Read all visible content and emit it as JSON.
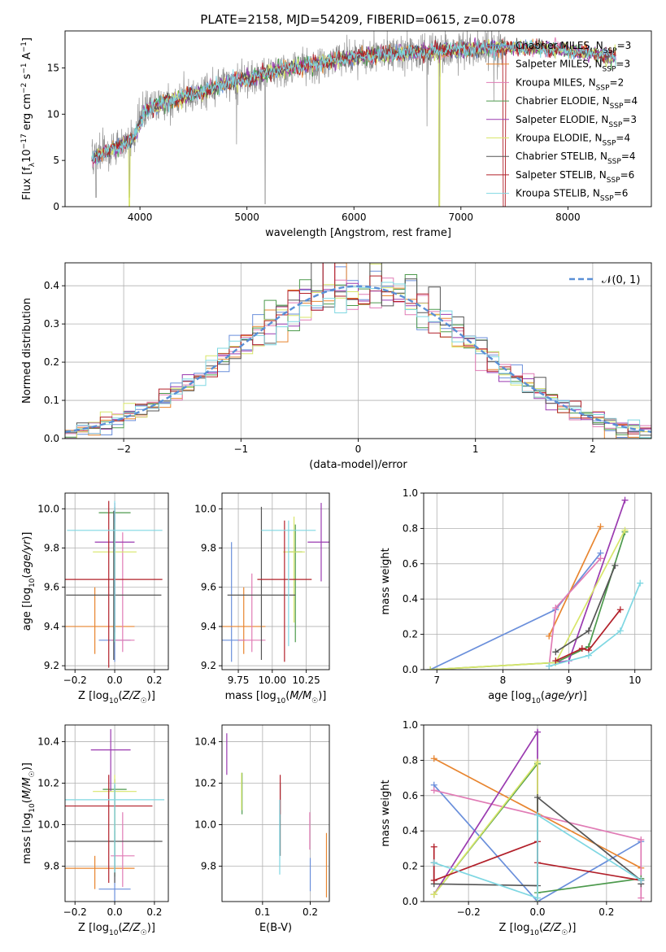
{
  "figure_title": "PLATE=2158, MJD=54209, FIBERID=0615, z=0.078",
  "model_colors": [
    "#6a8fdb",
    "#e8852f",
    "#e07bb5",
    "#4d9a4d",
    "#9a3ab0",
    "#d8e66a",
    "#555555",
    "#b2202a",
    "#7fd7e2"
  ],
  "chart_data": [
    {
      "id": "spectrum",
      "type": "line",
      "xlabel": "wavelength [Angstrom, rest frame]",
      "ylabel": "Flux [f_λ10^-17 erg cm^-2 s^-1 A^-1]",
      "xlim": [
        3300,
        8780
      ],
      "ylim": [
        0,
        19
      ],
      "xticks": [
        4000,
        5000,
        6000,
        7000,
        8000
      ],
      "yticks": [
        0,
        5,
        10,
        15
      ],
      "grid": false,
      "legend_position": "right",
      "legend": [
        {
          "model": "Chabrier MILES",
          "n": "3"
        },
        {
          "model": "Salpeter MILES",
          "n": "3"
        },
        {
          "model": "Kroupa MILES",
          "n": "2"
        },
        {
          "model": "Chabrier ELODIE",
          "n": "4"
        },
        {
          "model": "Salpeter ELODIE",
          "n": "3"
        },
        {
          "model": "Kroupa ELODIE",
          "n": "4"
        },
        {
          "model": "Chabrier STELIB",
          "n": "4"
        },
        {
          "model": "Salpeter STELIB",
          "n": "6"
        },
        {
          "model": "Kroupa STELIB",
          "n": "6"
        }
      ],
      "continuum": {
        "x": [
          3550,
          3700,
          3850,
          3950,
          4050,
          4200,
          4400,
          4600,
          4800,
          5000,
          5200,
          5400,
          5600,
          5800,
          6000,
          6200,
          6400,
          6600,
          6800,
          7000,
          7200,
          7400,
          7600,
          7800,
          8000,
          8200,
          8400
        ],
        "y": [
          5.2,
          6.0,
          6.8,
          7.5,
          10.3,
          11.2,
          11.8,
          12.5,
          13.3,
          13.8,
          14.5,
          15.0,
          15.4,
          15.8,
          16.2,
          16.4,
          16.6,
          16.7,
          16.9,
          17.0,
          17.1,
          17.2,
          17.2,
          17.1,
          16.9,
          16.6,
          16.2
        ]
      },
      "data_range": [
        3550,
        7420
      ],
      "model_range": [
        3550,
        8450
      ]
    },
    {
      "id": "residual_hist",
      "type": "histogram",
      "xlabel": "(data-model)/error",
      "ylabel": "Normed distribution",
      "xlim": [
        -2.5,
        2.5
      ],
      "ylim": [
        0,
        0.46
      ],
      "xticks": [
        -2,
        -1,
        0,
        1,
        2
      ],
      "yticks": [
        0.0,
        0.1,
        0.2,
        0.3,
        0.4
      ],
      "grid": true,
      "legend_position": "upper right",
      "reference_label": "𝒩(0, 1)",
      "bin_width": 0.1,
      "reference": {
        "mu": 0,
        "sigma": 1
      }
    },
    {
      "id": "age_vs_Z",
      "type": "errorbar",
      "xlabel": "Z [log10(Z/Z☉)]",
      "ylabel": "age  [log10(age/yr)]",
      "xlim": [
        -0.25,
        0.27
      ],
      "ylim": [
        9.18,
        10.08
      ],
      "xticks": [
        -0.2,
        0.0,
        0.2
      ],
      "yticks": [
        9.2,
        9.4,
        9.6,
        9.8,
        10.0
      ],
      "grid": true,
      "points": [
        {
          "x": 0.0,
          "xerr": 0.08,
          "y": 9.33,
          "yerr": [
            0.11,
            0.66
          ]
        },
        {
          "x": -0.1,
          "xerr": 0.2,
          "y": 9.4,
          "yerr": [
            0.14,
            0.2
          ]
        },
        {
          "x": 0.04,
          "xerr": 0.06,
          "y": 9.33,
          "yerr": [
            0.06,
            0.55
          ]
        },
        {
          "x": 0.0,
          "xerr": 0.08,
          "y": 9.98,
          "yerr": [
            0.66,
            0.03
          ]
        },
        {
          "x": 0.0,
          "xerr": 0.1,
          "y": 9.83,
          "yerr": [
            0.46,
            0.2
          ]
        },
        {
          "x": 0.0,
          "xerr": 0.11,
          "y": 9.78,
          "yerr": [
            0.13,
            0.15
          ]
        },
        {
          "x": -0.005,
          "xerr": 0.24,
          "y": 9.56,
          "yerr": [
            0.33,
            0.43
          ]
        },
        {
          "x": -0.03,
          "xerr": 0.27,
          "y": 9.64,
          "yerr": [
            0.45,
            0.4
          ]
        },
        {
          "x": 0.0,
          "xerr": 0.24,
          "y": 9.89,
          "yerr": [
            0.57,
            0.15
          ]
        }
      ]
    },
    {
      "id": "age_vs_mass",
      "type": "errorbar",
      "xlabel": "mass [log10(M/M☉)]",
      "ylabel": "",
      "xlim": [
        9.63,
        10.42
      ],
      "ylim": [
        9.18,
        10.08
      ],
      "xticks": [
        9.75,
        10.0,
        10.25
      ],
      "xticklabels": [
        "9.75",
        "10.00",
        "10.25"
      ],
      "yticks": [
        9.2,
        9.4,
        9.6,
        9.8,
        10.0
      ],
      "grid": true,
      "points": [
        {
          "x": 9.7,
          "xerr": 0.1,
          "y": 9.33,
          "yerr": [
            0.11,
            0.5
          ]
        },
        {
          "x": 9.79,
          "xerr": 0.16,
          "y": 9.4,
          "yerr": [
            0.14,
            0.2
          ]
        },
        {
          "x": 9.85,
          "xerr": 0.1,
          "y": 9.33,
          "yerr": [
            0.06,
            0.34
          ]
        },
        {
          "x": 10.17,
          "xerr": 0.05,
          "y": 9.78,
          "yerr": [
            0.46,
            0.14
          ]
        },
        {
          "x": 10.36,
          "xerr": 0.1,
          "y": 9.83,
          "yerr": [
            0.2,
            0.2
          ]
        },
        {
          "x": 10.16,
          "xerr": 0.08,
          "y": 9.78,
          "yerr": [
            0.36,
            0.18
          ]
        },
        {
          "x": 9.92,
          "xerr": 0.25,
          "y": 9.56,
          "yerr": [
            0.33,
            0.45
          ]
        },
        {
          "x": 10.09,
          "xerr": 0.2,
          "y": 9.64,
          "yerr": [
            0.42,
            0.3
          ]
        },
        {
          "x": 10.12,
          "xerr": 0.2,
          "y": 9.89,
          "yerr": [
            0.59,
            0.05
          ]
        }
      ]
    },
    {
      "id": "weight_vs_age",
      "type": "line",
      "xlabel": "age  [log10(age/yr)]",
      "ylabel": "mass weight",
      "xlim": [
        6.8,
        10.25
      ],
      "ylim": [
        0,
        1
      ],
      "xticks": [
        7,
        8,
        9,
        10
      ],
      "yticks": [
        0.0,
        0.2,
        0.4,
        0.6,
        0.8,
        1.0
      ],
      "grid": true,
      "series": [
        {
          "x": [
            6.9,
            8.8,
            9.48
          ],
          "y": [
            0.0,
            0.34,
            0.66
          ]
        },
        {
          "x": [
            8.7,
            9.48
          ],
          "y": [
            0.19,
            0.81
          ]
        },
        {
          "x": [
            8.7,
            8.8,
            9.48
          ],
          "y": [
            0.02,
            0.35,
            0.63
          ]
        },
        {
          "x": [
            6.9,
            8.8,
            9.3,
            9.85
          ],
          "y": [
            0.0,
            0.04,
            0.13,
            0.78
          ]
        },
        {
          "x": [
            8.8,
            9.0,
            9.85
          ],
          "y": [
            0.04,
            0.05,
            0.96
          ]
        },
        {
          "x": [
            6.9,
            8.8,
            9.85
          ],
          "y": [
            0.0,
            0.04,
            0.79
          ]
        },
        {
          "x": [
            8.8,
            9.3,
            9.7
          ],
          "y": [
            0.1,
            0.22,
            0.59
          ]
        },
        {
          "x": [
            8.8,
            9.2,
            9.3,
            9.78
          ],
          "y": [
            0.05,
            0.12,
            0.11,
            0.34
          ]
        },
        {
          "x": [
            8.7,
            9.3,
            9.78,
            10.08
          ],
          "y": [
            0.02,
            0.08,
            0.22,
            0.49
          ]
        }
      ]
    },
    {
      "id": "mass_vs_Z",
      "type": "errorbar",
      "xlabel": "Z [log10(Z/Z☉)]",
      "ylabel": "mass [log10(M/M☉)]",
      "xlim": [
        -0.25,
        0.27
      ],
      "ylim": [
        9.63,
        10.48
      ],
      "xticks": [
        -0.2,
        0.0,
        0.2
      ],
      "yticks": [
        9.8,
        10.0,
        10.2,
        10.4
      ],
      "grid": true,
      "points": [
        {
          "x": 0.0,
          "xerr": 0.08,
          "y": 9.69,
          "yerr": [
            0.1,
            0.28
          ]
        },
        {
          "x": -0.1,
          "xerr": 0.2,
          "y": 9.79,
          "yerr": [
            0.1,
            0.06
          ]
        },
        {
          "x": 0.04,
          "xerr": 0.06,
          "y": 9.85,
          "yerr": [
            0.15,
            0.21
          ]
        },
        {
          "x": 0.0,
          "xerr": 0.06,
          "y": 10.17,
          "yerr": [
            0.42,
            0.05
          ]
        },
        {
          "x": -0.02,
          "xerr": 0.1,
          "y": 10.36,
          "yerr": [
            0.2,
            0.1
          ]
        },
        {
          "x": 0.0,
          "xerr": 0.11,
          "y": 10.16,
          "yerr": [
            0.3,
            0.08
          ]
        },
        {
          "x": 0.0,
          "xerr": 0.24,
          "y": 9.92,
          "yerr": [
            0.2,
            0.27
          ]
        },
        {
          "x": -0.03,
          "xerr": 0.22,
          "y": 10.09,
          "yerr": [
            0.37,
            0.15
          ]
        },
        {
          "x": 0.0,
          "xerr": 0.25,
          "y": 10.12,
          "yerr": [
            0.35,
            0.08
          ]
        }
      ]
    },
    {
      "id": "mass_vs_EBV",
      "type": "errorbar",
      "xlabel": "E(B-V)",
      "ylabel": "",
      "xlim": [
        0.015,
        0.24
      ],
      "ylim": [
        9.63,
        10.48
      ],
      "xticks": [
        0.1,
        0.2
      ],
      "yticks": [
        9.8,
        10.0,
        10.2,
        10.4
      ],
      "grid": true,
      "points": [
        {
          "x": 0.2,
          "y": 9.78,
          "yerr": [
            0.1,
            0.06
          ]
        },
        {
          "x": 0.234,
          "y": 9.8,
          "yerr": [
            0.15,
            0.16
          ]
        },
        {
          "x": 0.199,
          "y": 9.98,
          "yerr": [
            0.1,
            0.08
          ]
        },
        {
          "x": 0.057,
          "y": 10.15,
          "yerr": [
            0.1,
            0.1
          ]
        },
        {
          "x": 0.025,
          "y": 10.34,
          "yerr": [
            0.1,
            0.1
          ]
        },
        {
          "x": 0.056,
          "y": 10.15,
          "yerr": [
            0.08,
            0.1
          ]
        },
        {
          "x": 0.137,
          "y": 10.0,
          "yerr": [
            0.15,
            0.2
          ]
        },
        {
          "x": 0.137,
          "y": 10.12,
          "yerr": [
            0.07,
            0.12
          ]
        },
        {
          "x": 0.136,
          "y": 9.99,
          "yerr": [
            0.23,
            0.13
          ]
        }
      ]
    },
    {
      "id": "weight_vs_Z",
      "type": "line",
      "xlabel": "Z [log10(Z/Z☉)]",
      "ylabel": "mass weight",
      "xlim": [
        -0.33,
        0.33
      ],
      "ylim": [
        0,
        1
      ],
      "xticks": [
        -0.2,
        0.0,
        0.2
      ],
      "yticks": [
        0.0,
        0.2,
        0.4,
        0.6,
        0.8,
        1.0
      ],
      "grid": true,
      "series": [
        {
          "x": [
            -0.3,
            0.0,
            0.0,
            0.3
          ],
          "y": [
            0.66,
            0.0,
            0.0,
            0.34
          ]
        },
        {
          "x": [
            -0.3,
            0.3
          ],
          "y": [
            0.81,
            0.19
          ]
        },
        {
          "x": [
            -0.3,
            0.3,
            0.3
          ],
          "y": [
            0.63,
            0.35,
            0.02
          ]
        },
        {
          "x": [
            -0.3,
            0.0,
            0.0,
            0.3
          ],
          "y": [
            0.04,
            0.78,
            0.05,
            0.13
          ]
        },
        {
          "x": [
            -0.3,
            0.0,
            0.0
          ],
          "y": [
            0.04,
            0.96,
            0.0
          ]
        },
        {
          "x": [
            -0.3,
            0.0,
            0.0
          ],
          "y": [
            0.04,
            0.79,
            0.0
          ]
        },
        {
          "x": [
            -0.3,
            -0.3,
            0.0,
            0.0,
            0.3,
            0.3
          ],
          "y": [
            0.22,
            0.1,
            0.09,
            0.59,
            0.12,
            0.1
          ]
        },
        {
          "x": [
            -0.3,
            -0.3,
            0.0,
            0.0,
            0.3
          ],
          "y": [
            0.31,
            0.12,
            0.34,
            0.22,
            0.12
          ]
        },
        {
          "x": [
            -0.3,
            0.0,
            0.0,
            0.3
          ],
          "y": [
            0.22,
            0.02,
            0.49,
            0.12
          ]
        }
      ]
    }
  ]
}
